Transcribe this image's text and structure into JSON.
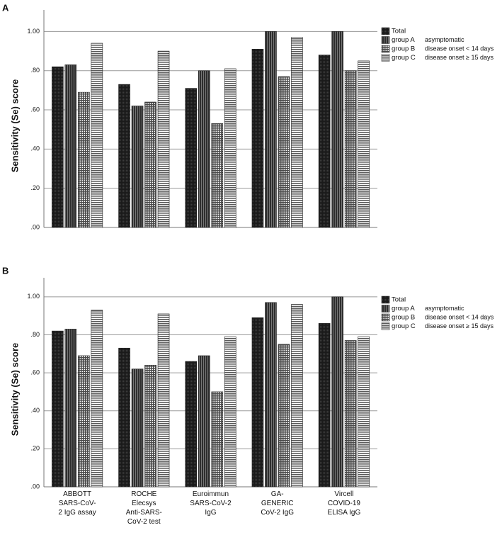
{
  "chart_data": [
    {
      "type": "bar",
      "panel": "A",
      "ylabel": "Sensitivity (Se) score",
      "categories": [
        null,
        null,
        null,
        null,
        null
      ],
      "series": [
        {
          "name": "Total",
          "color": "#1a1a1a",
          "pattern": "dots",
          "values": [
            0.82,
            0.73,
            0.71,
            0.91,
            0.88
          ]
        },
        {
          "name": "group A",
          "description": "asymptomatic",
          "color": "#2e2e2e",
          "pattern": "vertical",
          "values": [
            0.83,
            0.62,
            0.8,
            1.0,
            1.0
          ]
        },
        {
          "name": "group B",
          "description": "disease onset < 14 days",
          "color": "#4a4a4a",
          "pattern": "grid",
          "values": [
            0.69,
            0.64,
            0.53,
            0.77,
            0.8
          ]
        },
        {
          "name": "group C",
          "description": "disease onset ≥ 15 days",
          "color": "#5a5a5a",
          "pattern": "horizontal",
          "values": [
            0.94,
            0.9,
            0.81,
            0.97,
            0.85
          ]
        }
      ],
      "ylim": [
        0,
        1.11
      ],
      "yticks": [
        {
          "value": 0,
          "label": ".00"
        },
        {
          "value": 0.2,
          "label": ".20"
        },
        {
          "value": 0.4,
          "label": ".40"
        },
        {
          "value": 0.6,
          "label": ".60"
        },
        {
          "value": 0.8,
          "label": ".80"
        },
        {
          "value": 1,
          "label": "1.00"
        }
      ],
      "grid": true,
      "legend": "right"
    },
    {
      "type": "bar",
      "panel": "B",
      "ylabel": "Sensitivity (Se) score",
      "categories": [
        "ABBOTT\nSARS-CoV-\n2 IgG assay",
        "ROCHE\nElecsys\nAnti-SARS-\nCoV-2 test",
        "Euroimmun\nSARS-CoV-2\nIgG",
        "GA-\nGENERIC\nCoV-2 IgG",
        "Vircell\nCOVID-19\nELISA IgG"
      ],
      "series": [
        {
          "name": "Total",
          "color": "#1a1a1a",
          "pattern": "dots",
          "values": [
            0.82,
            0.73,
            0.66,
            0.89,
            0.86
          ]
        },
        {
          "name": "group A",
          "description": "asymptomatic",
          "color": "#2e2e2e",
          "pattern": "vertical",
          "values": [
            0.83,
            0.62,
            0.69,
            0.97,
            1.0
          ]
        },
        {
          "name": "group B",
          "description": "disease onset < 14 days",
          "color": "#4a4a4a",
          "pattern": "grid",
          "values": [
            0.69,
            0.64,
            0.5,
            0.75,
            0.77
          ]
        },
        {
          "name": "group C",
          "description": "disease onset ≥ 15 days",
          "color": "#5a5a5a",
          "pattern": "horizontal",
          "values": [
            0.93,
            0.91,
            0.79,
            0.96,
            0.79
          ]
        }
      ],
      "ylim": [
        0,
        1.1
      ],
      "yticks": [
        {
          "value": 0,
          "label": ".00"
        },
        {
          "value": 0.2,
          "label": ".20"
        },
        {
          "value": 0.4,
          "label": ".40"
        },
        {
          "value": 0.6,
          "label": ".60"
        },
        {
          "value": 0.8,
          "label": ".80"
        },
        {
          "value": 1,
          "label": "1.00"
        }
      ],
      "grid": true,
      "legend": "right"
    }
  ]
}
